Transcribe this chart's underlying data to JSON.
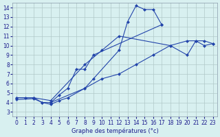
{
  "xlabel": "Graphe des températures (°c)",
  "bg_color": "#d8f0f0",
  "grid_color": "#b0c8c8",
  "line_color": "#2244aa",
  "xlim": [
    -0.5,
    23.5
  ],
  "ylim": [
    2.5,
    14.5
  ],
  "xticks": [
    0,
    1,
    2,
    3,
    4,
    5,
    6,
    7,
    8,
    9,
    10,
    11,
    12,
    13,
    14,
    15,
    16,
    17,
    18,
    19,
    20,
    21,
    22,
    23
  ],
  "yticks": [
    3,
    4,
    5,
    6,
    7,
    8,
    9,
    10,
    11,
    12,
    13,
    14
  ],
  "curve1_x": [
    0,
    1,
    2,
    3,
    4,
    8,
    9,
    12,
    13,
    14,
    15,
    16,
    17
  ],
  "curve1_y": [
    4.5,
    4.5,
    4.5,
    4.0,
    4.0,
    5.5,
    6.5,
    9.5,
    12.5,
    14.2,
    13.8,
    13.8,
    12.2
  ],
  "curve2_x": [
    4,
    5,
    6,
    7,
    8,
    9,
    17
  ],
  "curve2_y": [
    4.0,
    4.8,
    5.5,
    7.5,
    7.5,
    9.0,
    12.2
  ],
  "curve3_x": [
    0,
    2,
    3,
    4,
    5,
    6,
    8,
    10,
    12,
    14,
    16,
    18,
    20,
    21,
    22,
    23
  ],
  "curve3_y": [
    4.3,
    4.4,
    4.0,
    3.8,
    4.2,
    4.5,
    5.5,
    6.5,
    7.0,
    8.0,
    9.0,
    10.0,
    10.5,
    10.5,
    10.0,
    10.2
  ],
  "curve4_x": [
    0,
    2,
    4,
    8,
    10,
    12,
    18,
    20,
    21,
    22,
    23
  ],
  "curve4_y": [
    4.5,
    4.5,
    4.2,
    8.0,
    9.5,
    11.0,
    10.0,
    9.0,
    10.5,
    10.5,
    10.2
  ]
}
